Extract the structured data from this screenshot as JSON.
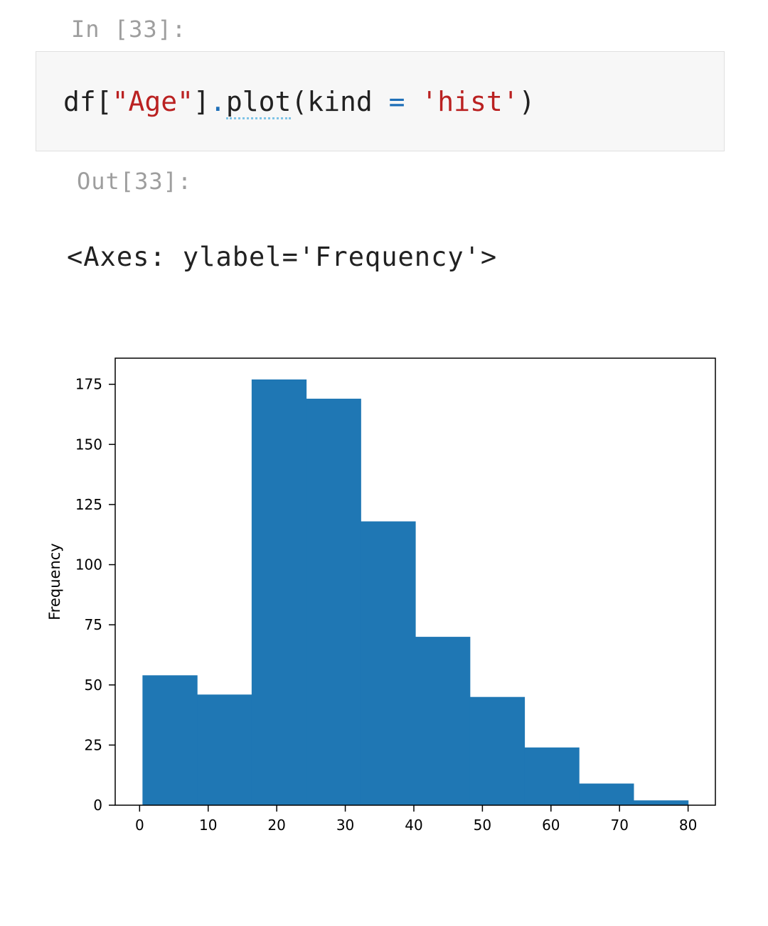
{
  "cell": {
    "in_prompt": "In [33]:",
    "code": {
      "t1": "df[",
      "t2": "\"Age\"",
      "t3": "]",
      "t4": ".",
      "t5": "plot",
      "t6": "(kind ",
      "t7": "=",
      "t8": " ",
      "t9": "'hist'",
      "t10": ")"
    },
    "out_prompt": "Out[33]:",
    "out_text": "<Axes: ylabel='Frequency'>"
  },
  "chart_data": {
    "type": "bar",
    "title": "",
    "xlabel": "",
    "ylabel": "Frequency",
    "bar_color": "#1f77b4",
    "bins": [
      {
        "x0": 0.42,
        "x1": 8.38,
        "value": 54
      },
      {
        "x0": 8.38,
        "x1": 16.34,
        "value": 46
      },
      {
        "x0": 16.34,
        "x1": 24.29,
        "value": 177
      },
      {
        "x0": 24.29,
        "x1": 32.25,
        "value": 169
      },
      {
        "x0": 32.25,
        "x1": 40.21,
        "value": 118
      },
      {
        "x0": 40.21,
        "x1": 48.17,
        "value": 70
      },
      {
        "x0": 48.17,
        "x1": 56.13,
        "value": 45
      },
      {
        "x0": 56.13,
        "x1": 64.08,
        "value": 24
      },
      {
        "x0": 64.08,
        "x1": 72.04,
        "value": 9
      },
      {
        "x0": 72.04,
        "x1": 80.0,
        "value": 2
      }
    ],
    "xticks": [
      0,
      10,
      20,
      30,
      40,
      50,
      60,
      70,
      80
    ],
    "yticks": [
      0,
      25,
      50,
      75,
      100,
      125,
      150,
      175
    ],
    "xlim": [
      -3.56,
      83.98
    ],
    "ylim": [
      0,
      185.85
    ],
    "grid": false
  }
}
